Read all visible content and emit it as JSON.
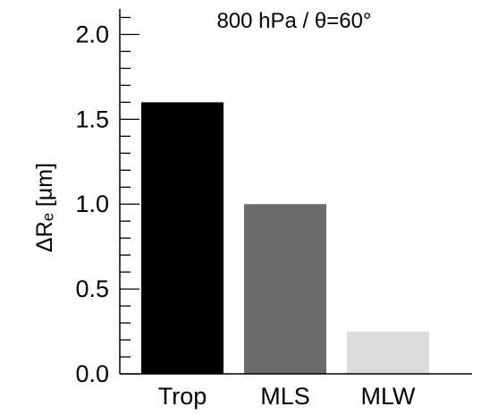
{
  "chart_data": {
    "type": "bar",
    "title": "800 hPa / θ=60°",
    "xlabel": "",
    "ylabel": "ΔRₑ [μm]",
    "categories": [
      "Trop",
      "MLS",
      "MLW"
    ],
    "values": [
      1.6,
      1.0,
      0.25
    ],
    "colors": [
      "#000000",
      "#6b6b6b",
      "#dcdcdc"
    ],
    "ylim": [
      0.0,
      2.15
    ],
    "yticks": [
      {
        "value": 0.0,
        "label": "0.0"
      },
      {
        "value": 0.5,
        "label": "0.5"
      },
      {
        "value": 1.0,
        "label": "1.0"
      },
      {
        "value": 1.5,
        "label": "1.5"
      },
      {
        "value": 2.0,
        "label": "2.0"
      }
    ],
    "minor_tick_step": 0.1,
    "grid": false,
    "legend": "none"
  }
}
